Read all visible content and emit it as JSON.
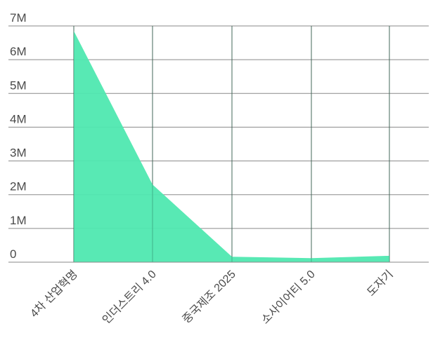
{
  "chart_data": {
    "type": "area",
    "categories": [
      "4차 산업혁명",
      "인더스트리 4.0",
      "중국제조 2025",
      "소사이어티 5.0",
      "도자기"
    ],
    "series": [
      {
        "values": [
          6850000,
          2300000,
          160000,
          120000,
          190000
        ]
      }
    ],
    "ylim": [
      0,
      7000000
    ],
    "y_ticks": [
      0,
      1000000,
      2000000,
      3000000,
      4000000,
      5000000,
      6000000,
      7000000
    ],
    "y_tick_labels": [
      "0",
      "1M",
      "2M",
      "3M",
      "4M",
      "5M",
      "6M",
      "7M"
    ],
    "grid": true,
    "colors": {
      "area": "#4fe8b0"
    }
  }
}
